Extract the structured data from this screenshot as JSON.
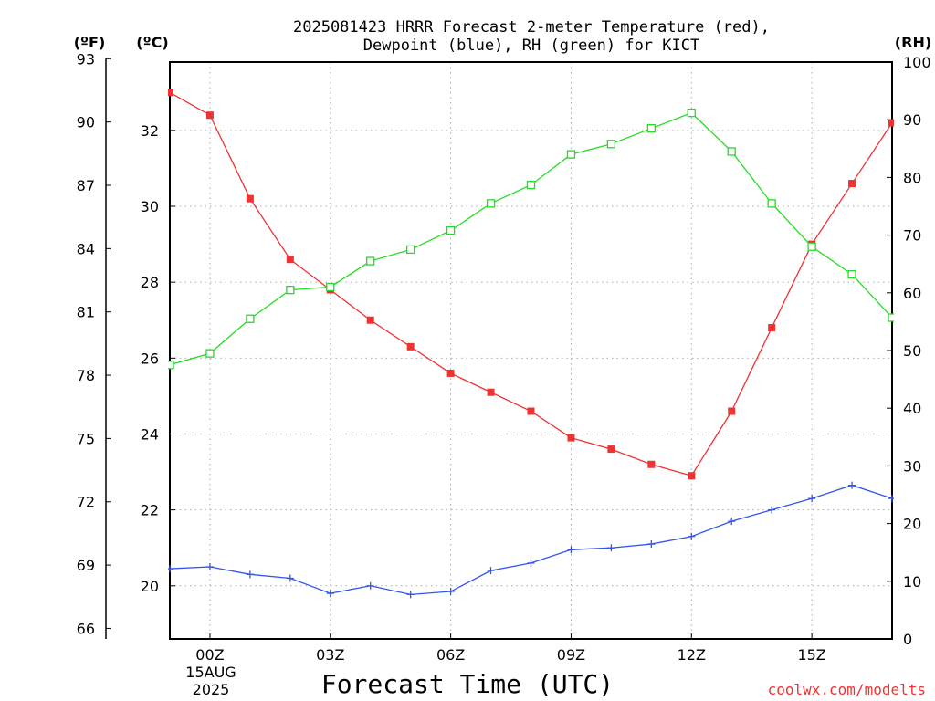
{
  "title": {
    "line1": "2025081423 HRRR Forecast 2-meter Temperature (red),",
    "line2": "Dewpoint (blue), RH (green) for KICT"
  },
  "units": {
    "fahrenheit": "(ºF)",
    "celsius": "(ºC)",
    "rh": "(RH)"
  },
  "date_label": {
    "day": "15AUG",
    "year": "2025"
  },
  "watermark": "coolwx.com/modelts",
  "colors": {
    "temperature": "#ee3333",
    "dewpoint": "#3355ee",
    "rh": "#22dd22",
    "grid": "#aaaaaa"
  },
  "chart_data": {
    "type": "line",
    "title": "2025081423 HRRR Forecast 2-meter Temperature (red), Dewpoint (blue), RH (green) for KICT",
    "xlabel": "Forecast Time (UTC)",
    "x": [
      -1,
      0,
      1,
      2,
      3,
      4,
      5,
      6,
      7,
      8,
      9,
      10,
      11,
      12,
      13,
      14,
      15,
      16,
      17
    ],
    "x_ticks": [
      {
        "x": 0,
        "label": "00Z"
      },
      {
        "x": 3,
        "label": "03Z"
      },
      {
        "x": 6,
        "label": "06Z"
      },
      {
        "x": 9,
        "label": "09Z"
      },
      {
        "x": 12,
        "label": "12Z"
      },
      {
        "x": 15,
        "label": "15Z"
      }
    ],
    "xlim": [
      -1,
      17
    ],
    "ylim_celsius": [
      18.6,
      33.8
    ],
    "ylim_fahrenheit": [
      65.5,
      92.84
    ],
    "ylim_rh": [
      0,
      100
    ],
    "left_ticks_fahrenheit": [
      66,
      69,
      72,
      75,
      78,
      81,
      84,
      87,
      90,
      93
    ],
    "left_ticks_celsius": [
      20,
      22,
      24,
      26,
      28,
      30,
      32
    ],
    "right_ticks_rh": [
      0,
      10,
      20,
      30,
      40,
      50,
      60,
      70,
      80,
      90,
      100
    ],
    "grid": true,
    "series": [
      {
        "name": "Temperature (red)",
        "axis": "celsius",
        "marker": "filled-square",
        "values": [
          33.0,
          32.4,
          30.2,
          28.6,
          27.8,
          27.0,
          26.3,
          25.6,
          25.1,
          24.6,
          23.9,
          23.6,
          23.2,
          22.9,
          24.6,
          26.8,
          29.0,
          30.6,
          32.2
        ]
      },
      {
        "name": "Dewpoint (blue)",
        "axis": "celsius",
        "marker": "plus",
        "values": [
          20.45,
          20.5,
          20.3,
          20.2,
          19.8,
          20.0,
          19.77,
          19.85,
          20.4,
          20.6,
          20.95,
          21.0,
          21.1,
          21.3,
          21.7,
          22.0,
          22.3,
          22.65,
          22.3
        ]
      },
      {
        "name": "RH (green)",
        "axis": "rh",
        "marker": "open-square",
        "values": [
          47.5,
          49.5,
          55.5,
          60.5,
          61.0,
          65.5,
          67.5,
          70.8,
          75.5,
          78.7,
          84.0,
          85.8,
          88.5,
          91.2,
          84.5,
          75.5,
          68.0,
          63.2,
          55.7
        ]
      }
    ]
  }
}
